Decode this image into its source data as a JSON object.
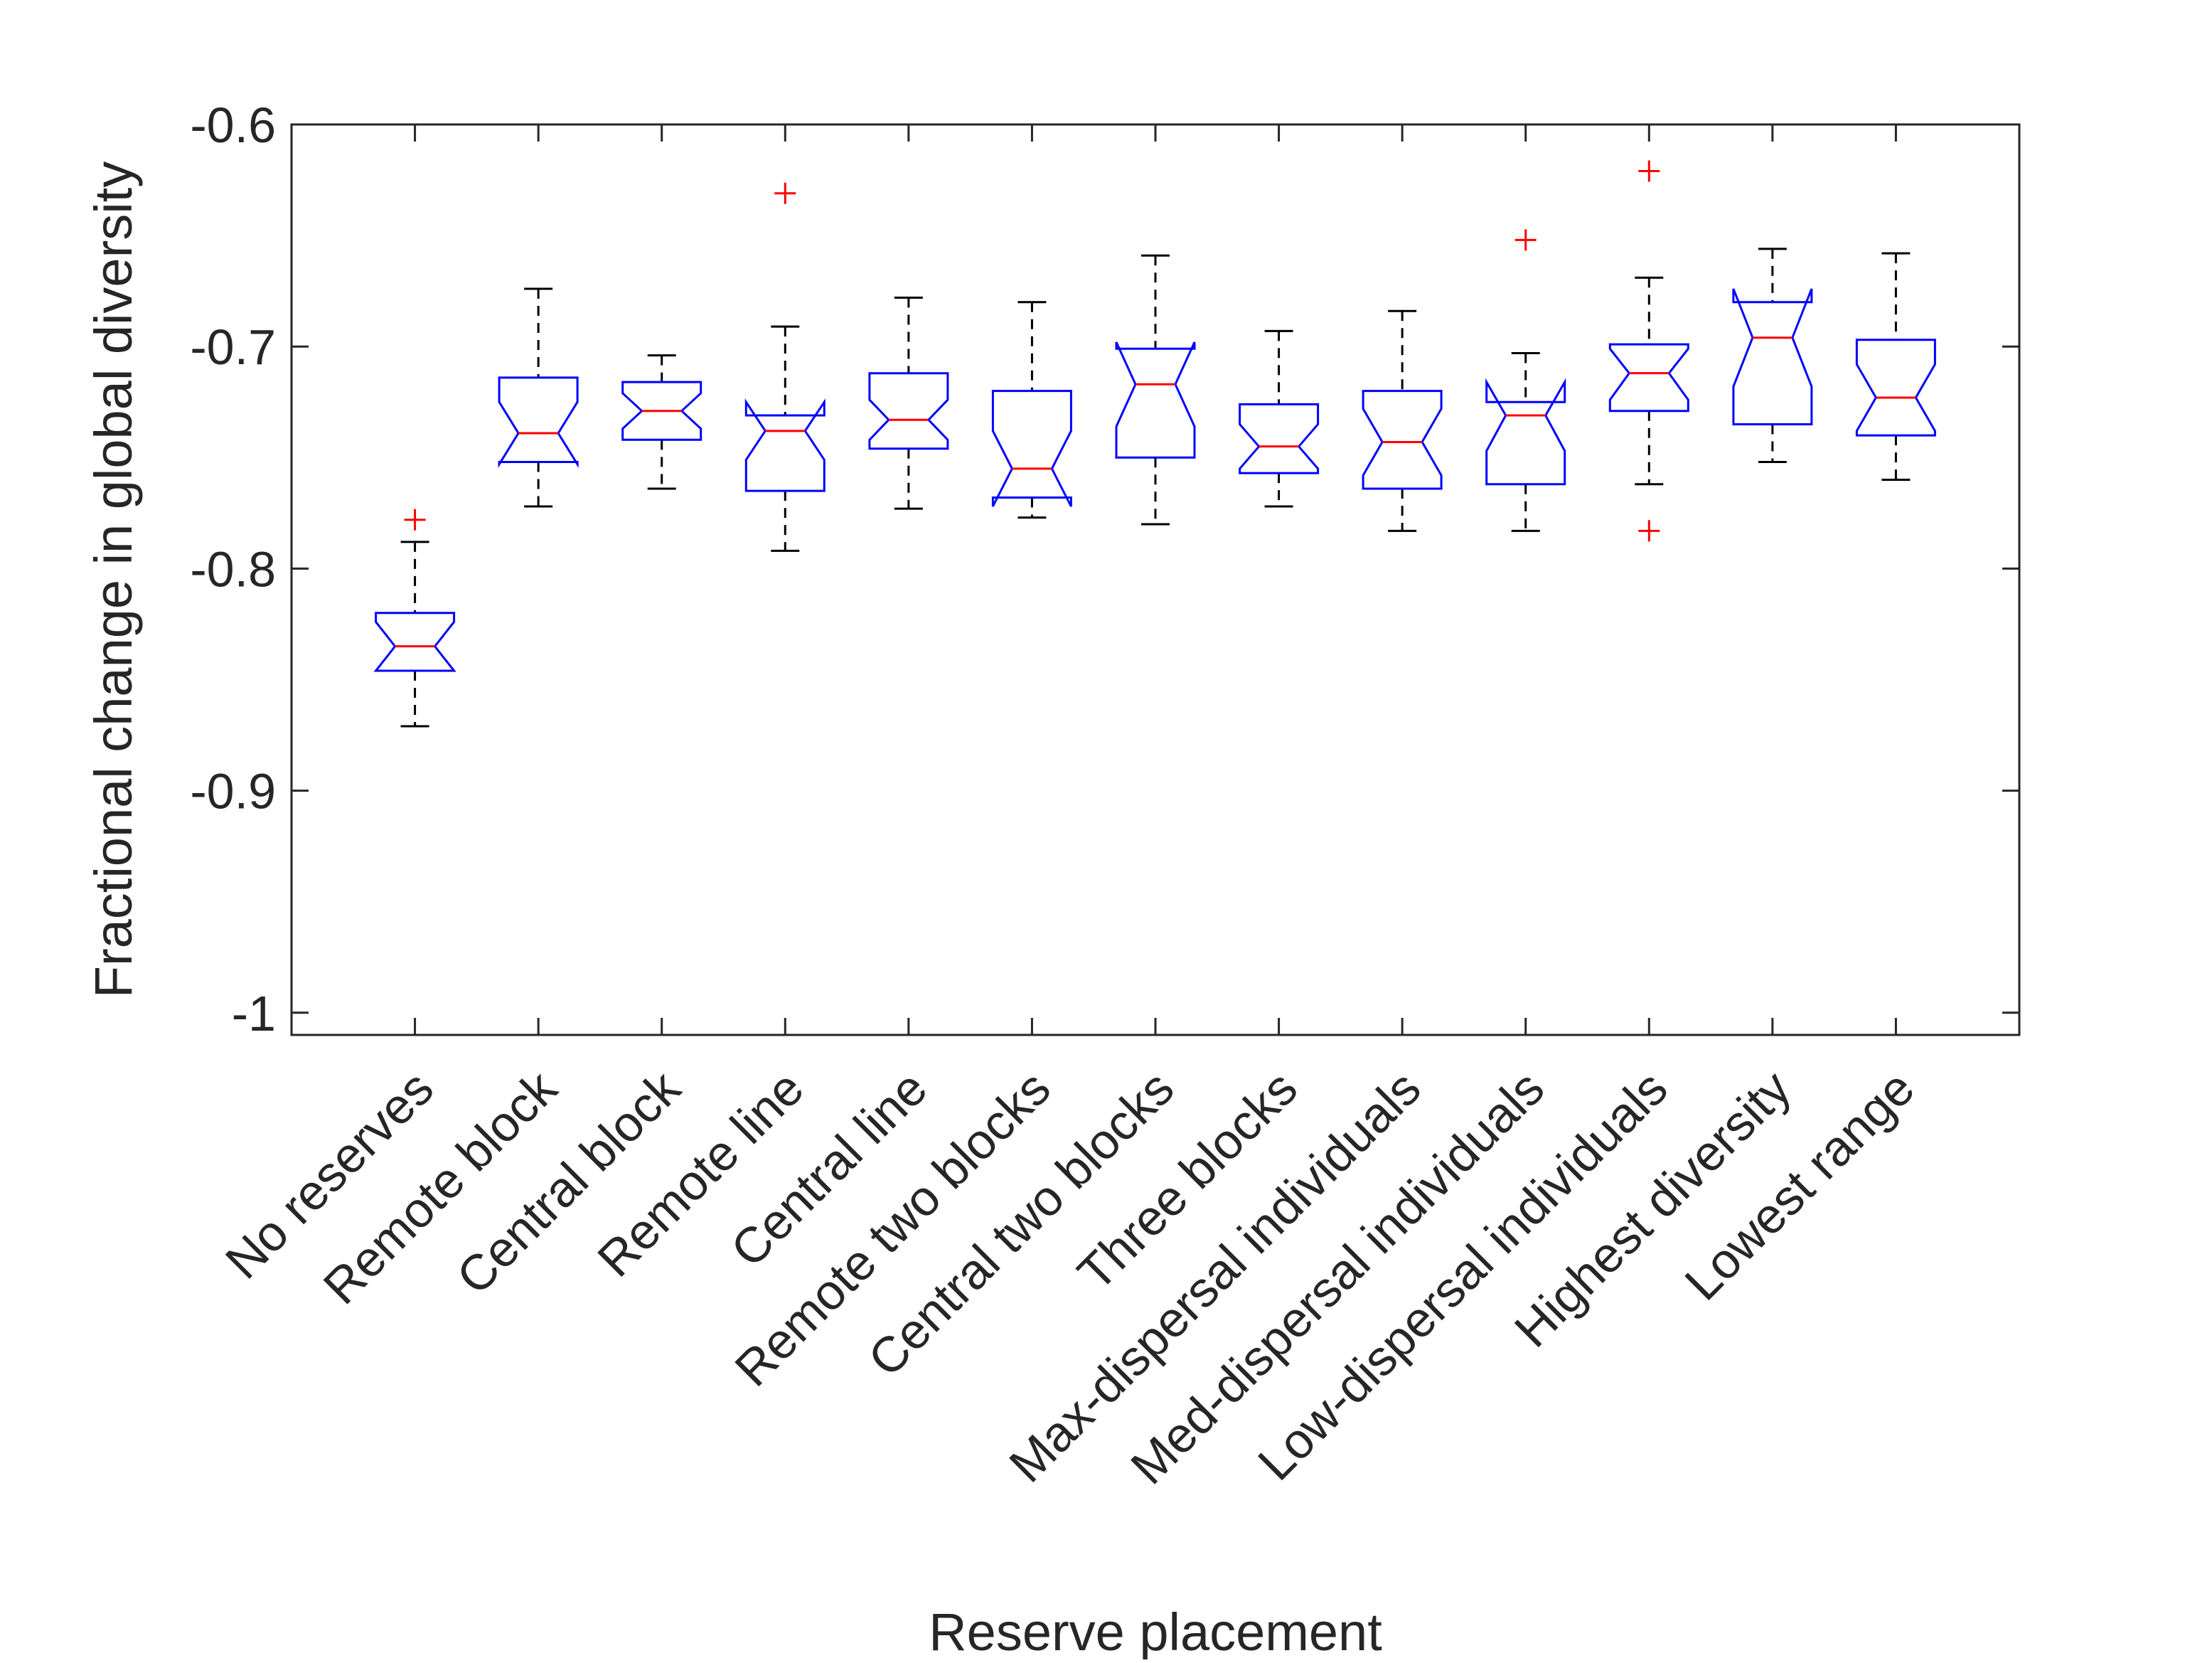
{
  "chart_data": {
    "type": "boxplot",
    "xlabel": "Reserve placement",
    "ylabel": "Fractional change in global diversity",
    "ylim": [
      -1.01,
      -0.6
    ],
    "yticks": [
      -1,
      -0.9,
      -0.8,
      -0.7,
      -0.6
    ],
    "ytick_labels": [
      "-1",
      "-0.9",
      "-0.8",
      "-0.7",
      "-0.6"
    ],
    "notched": true,
    "grid": false,
    "categories": [
      "No reserves",
      "Remote block",
      "Central block",
      "Remote line",
      "Central line",
      "Remote two blocks",
      "Central two blocks",
      "Three blocks",
      "Max-dispersal individuals",
      "Med-dispersal individuals",
      "Low-dispersal individuals",
      "Highest diversity",
      "Lowest range"
    ],
    "boxes": [
      {
        "whisker_low": -0.871,
        "q1": -0.846,
        "median": -0.835,
        "q3": -0.82,
        "whisker_high": -0.788,
        "notch_low": -0.846,
        "notch_high": -0.824,
        "outliers": [
          -0.778
        ]
      },
      {
        "whisker_low": -0.772,
        "q1": -0.752,
        "median": -0.739,
        "q3": -0.714,
        "whisker_high": -0.674,
        "notch_low": -0.753,
        "notch_high": -0.725,
        "outliers": []
      },
      {
        "whisker_low": -0.764,
        "q1": -0.742,
        "median": -0.729,
        "q3": -0.716,
        "whisker_high": -0.704,
        "notch_low": -0.737,
        "notch_high": -0.721,
        "outliers": []
      },
      {
        "whisker_low": -0.792,
        "q1": -0.765,
        "median": -0.738,
        "q3": -0.731,
        "whisker_high": -0.691,
        "notch_low": -0.751,
        "notch_high": -0.725,
        "outliers": [
          -0.631
        ]
      },
      {
        "whisker_low": -0.773,
        "q1": -0.746,
        "median": -0.733,
        "q3": -0.712,
        "whisker_high": -0.678,
        "notch_low": -0.742,
        "notch_high": -0.724,
        "outliers": []
      },
      {
        "whisker_low": -0.777,
        "q1": -0.768,
        "median": -0.755,
        "q3": -0.72,
        "whisker_high": -0.68,
        "notch_low": -0.772,
        "notch_high": -0.738,
        "outliers": []
      },
      {
        "whisker_low": -0.78,
        "q1": -0.75,
        "median": -0.717,
        "q3": -0.701,
        "whisker_high": -0.659,
        "notch_low": -0.736,
        "notch_high": -0.698,
        "outliers": []
      },
      {
        "whisker_low": -0.772,
        "q1": -0.757,
        "median": -0.745,
        "q3": -0.726,
        "whisker_high": -0.693,
        "notch_low": -0.755,
        "notch_high": -0.735,
        "outliers": []
      },
      {
        "whisker_low": -0.783,
        "q1": -0.764,
        "median": -0.743,
        "q3": -0.72,
        "whisker_high": -0.684,
        "notch_low": -0.758,
        "notch_high": -0.728,
        "outliers": []
      },
      {
        "whisker_low": -0.783,
        "q1": -0.762,
        "median": -0.731,
        "q3": -0.725,
        "whisker_high": -0.703,
        "notch_low": -0.747,
        "notch_high": -0.716,
        "outliers": [
          -0.652
        ]
      },
      {
        "whisker_low": -0.762,
        "q1": -0.729,
        "median": -0.712,
        "q3": -0.699,
        "whisker_high": -0.669,
        "notch_low": -0.724,
        "notch_high": -0.701,
        "outliers": [
          -0.621,
          -0.783
        ]
      },
      {
        "whisker_low": -0.752,
        "q1": -0.735,
        "median": -0.696,
        "q3": -0.68,
        "whisker_high": -0.656,
        "notch_low": -0.718,
        "notch_high": -0.674,
        "outliers": []
      },
      {
        "whisker_low": -0.76,
        "q1": -0.74,
        "median": -0.723,
        "q3": -0.697,
        "whisker_high": -0.658,
        "notch_low": -0.738,
        "notch_high": -0.708,
        "outliers": []
      }
    ],
    "colors": {
      "box": "#0000ff",
      "median": "#ff0000",
      "outlier": "#ff0000",
      "whisker": "#000000",
      "axis": "#262626"
    }
  }
}
